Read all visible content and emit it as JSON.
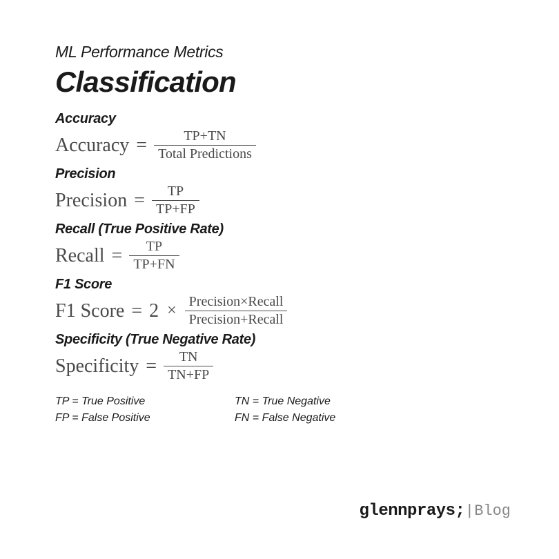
{
  "header": {
    "subtitle": "ML Performance Metrics",
    "title": "Classification"
  },
  "metrics": {
    "accuracy": {
      "label": "Accuracy",
      "lhs": "Accuracy",
      "numerator": "TP+TN",
      "denominator": "Total Predictions"
    },
    "precision": {
      "label": "Precision",
      "lhs": "Precision",
      "numerator": "TP",
      "denominator": "TP+FP"
    },
    "recall": {
      "label": "Recall (True Positive Rate)",
      "lhs": "Recall",
      "numerator": "TP",
      "denominator": "TP+FN"
    },
    "f1": {
      "label": "F1 Score",
      "lhs": "F1 Score",
      "scalar": "2",
      "numerator": "Precision×Recall",
      "denominator": "Precision+Recall"
    },
    "specificity": {
      "label": "Specificity (True Negative Rate)",
      "lhs": "Specificity",
      "numerator": "TN",
      "denominator": "TN+FP"
    }
  },
  "legend": {
    "tp": "TP = True Positive",
    "tn": "TN = True Negative",
    "fp": "FP = False Positive",
    "fn": "FN = False Negative"
  },
  "footer": {
    "brand": "glennprays;",
    "divider": "|",
    "blog": "Blog"
  },
  "colors": {
    "text": "#1a1a1a",
    "formula": "#4a4a4a",
    "muted": "#888888",
    "background": "#ffffff"
  }
}
